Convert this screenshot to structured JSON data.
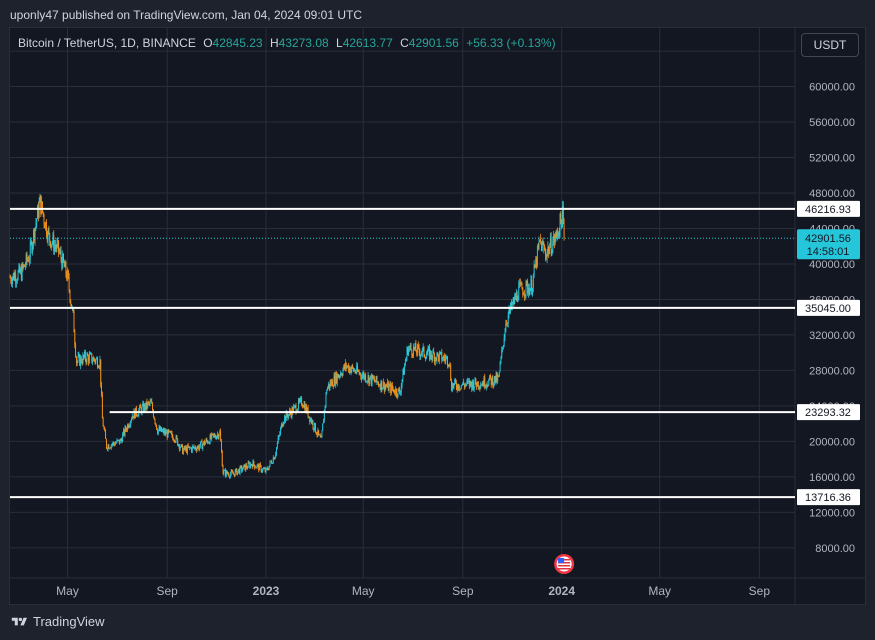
{
  "caption": "uponly47 published on TradingView.com, Jan 04, 2024 09:01 UTC",
  "legend": {
    "symbol": "Bitcoin / TetherUS, 1D, BINANCE",
    "open_label": "O",
    "open": "42845.23",
    "high_label": "H",
    "high": "43273.08",
    "low_label": "L",
    "low": "42613.77",
    "close_label": "C",
    "close": "42901.56",
    "change": "+56.33 (+0.13%)"
  },
  "currency_button": "USDT",
  "brand": "TradingView",
  "colors": {
    "background": "#131722",
    "up": "#26c6da",
    "down": "#f7931a",
    "grid": "#2a2e39",
    "level_line": "#ffffff",
    "price_label_bg": "#26c6da"
  },
  "icons": {
    "brand_logo": "tradingview-logo-icon",
    "event_marker": "us-flag-event-icon"
  },
  "chart_data": {
    "type": "candlestick",
    "title": "",
    "xlabel": "",
    "ylabel": "",
    "y_axis_ticks": [
      "64000.00",
      "60000.00",
      "56000.00",
      "52000.00",
      "48000.00",
      "44000.00",
      "40000.00",
      "36000.00",
      "32000.00",
      "28000.00",
      "24000.00",
      "20000.00",
      "16000.00",
      "12000.00",
      "8000.00"
    ],
    "ylim": [
      4600,
      66600
    ],
    "xlim": [
      "2022-02-19",
      "2024-10-15"
    ],
    "x_axis_ticks": [
      {
        "date": "2022-05-01",
        "label": "May",
        "bold": false
      },
      {
        "date": "2022-09-01",
        "label": "Sep",
        "bold": false
      },
      {
        "date": "2023-01-01",
        "label": "2023",
        "bold": true
      },
      {
        "date": "2023-05-01",
        "label": "May",
        "bold": false
      },
      {
        "date": "2023-09-01",
        "label": "Sep",
        "bold": false
      },
      {
        "date": "2024-01-01",
        "label": "2024",
        "bold": true
      },
      {
        "date": "2024-05-01",
        "label": "May",
        "bold": false
      },
      {
        "date": "2024-09-01",
        "label": "Sep",
        "bold": false
      }
    ],
    "price_path": [
      [
        "2022-02-19",
        38500
      ],
      [
        "2022-03-05",
        39000
      ],
      [
        "2022-03-15",
        41000
      ],
      [
        "2022-03-28",
        47000
      ],
      [
        "2022-04-08",
        43000
      ],
      [
        "2022-04-20",
        41500
      ],
      [
        "2022-05-01",
        38500
      ],
      [
        "2022-05-08",
        34000
      ],
      [
        "2022-05-12",
        29000
      ],
      [
        "2022-05-25",
        29500
      ],
      [
        "2022-06-10",
        29000
      ],
      [
        "2022-06-13",
        22500
      ],
      [
        "2022-06-18",
        19500
      ],
      [
        "2022-07-05",
        20000
      ],
      [
        "2022-07-20",
        23000
      ],
      [
        "2022-08-12",
        24300
      ],
      [
        "2022-08-20",
        21300
      ],
      [
        "2022-09-10",
        20500
      ],
      [
        "2022-09-20",
        19000
      ],
      [
        "2022-10-10",
        19400
      ],
      [
        "2022-11-05",
        21000
      ],
      [
        "2022-11-09",
        16500
      ],
      [
        "2022-11-20",
        16300
      ],
      [
        "2022-12-15",
        17500
      ],
      [
        "2023-01-01",
        16600
      ],
      [
        "2023-01-12",
        18500
      ],
      [
        "2023-01-22",
        22500
      ],
      [
        "2023-02-15",
        24500
      ],
      [
        "2023-03-10",
        20000
      ],
      [
        "2023-03-17",
        26000
      ],
      [
        "2023-04-10",
        28500
      ],
      [
        "2023-04-20",
        28000
      ],
      [
        "2023-05-10",
        27000
      ],
      [
        "2023-06-15",
        25500
      ],
      [
        "2023-06-25",
        30500
      ],
      [
        "2023-07-15",
        30000
      ],
      [
        "2023-08-15",
        29200
      ],
      [
        "2023-08-18",
        26300
      ],
      [
        "2023-09-15",
        26500
      ],
      [
        "2023-10-15",
        27000
      ],
      [
        "2023-10-24",
        33500
      ],
      [
        "2023-11-09",
        37000
      ],
      [
        "2023-11-25",
        37500
      ],
      [
        "2023-12-05",
        42500
      ],
      [
        "2023-12-12",
        41200
      ],
      [
        "2023-12-25",
        43000
      ],
      [
        "2024-01-02",
        45500
      ],
      [
        "2024-01-04",
        42901.56
      ]
    ],
    "horizontal_levels": [
      {
        "value": 46216.93,
        "label": "46216.93",
        "start_date": "2022-02-19"
      },
      {
        "value": 35045.0,
        "label": "35045.00",
        "start_date": "2022-02-19"
      },
      {
        "value": 23293.32,
        "label": "23293.32",
        "start_date": "2022-06-22"
      },
      {
        "value": 13716.36,
        "label": "13716.36",
        "start_date": "2022-02-19"
      }
    ],
    "last_price": {
      "value": 42901.56,
      "label": "42901.56",
      "countdown": "14:58:01"
    },
    "event_marker_date": "2024-01-04"
  }
}
